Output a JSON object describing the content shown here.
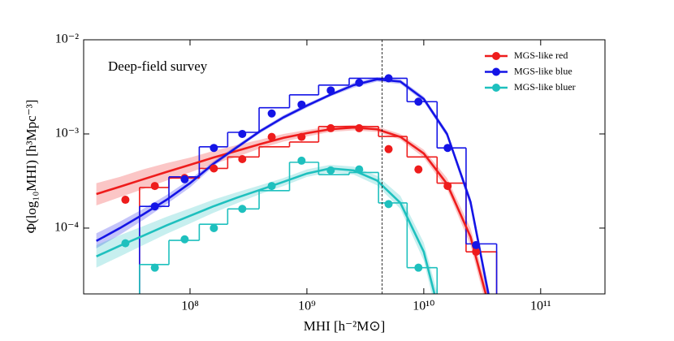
{
  "chart_data": {
    "type": "mass-function",
    "annotation": "Deep-field survey",
    "x_label": "MHI [h⁻²M⊙]",
    "y_label": "Φ(log₁₀MHI) [h³Mpc⁻³]",
    "log_x": true,
    "log_y": true,
    "xlim": [
      12300000,
      355000000000
    ],
    "ylim": [
      2e-05,
      0.01
    ],
    "xticks": [
      {
        "value": 100000000,
        "label": "10⁸"
      },
      {
        "value": 1000000000,
        "label": "10⁹"
      },
      {
        "value": 10000000000,
        "label": "10¹⁰"
      },
      {
        "value": 100000000000,
        "label": "10¹¹"
      }
    ],
    "yticks": [
      {
        "value": 0.0001,
        "label": "10⁻⁴"
      },
      {
        "value": 0.001,
        "label": "10⁻³"
      },
      {
        "value": 0.01,
        "label": "10⁻²"
      }
    ],
    "legend": "upper right",
    "reference_line": {
      "x": 4400000000,
      "style": "dashed"
    },
    "x": [
      28000000,
      50000000,
      90000000,
      160000000,
      280000000,
      500000000,
      900000000,
      1600000000,
      2800000000,
      5000000000,
      9000000000,
      16000000000,
      28000000000
    ],
    "bins": [
      37000000,
      66000000,
      120000000,
      210000000,
      390000000,
      710000000,
      1260000000,
      2300000000,
      4100000000,
      7200000000,
      13000000000,
      23000000000,
      42000000000
    ],
    "curve_x": [
      15800000,
      25100000,
      39800000,
      63100000,
      100000000,
      158000000,
      251000000,
      398000000,
      631000000,
      1000000000,
      1580000000,
      2510000000,
      3980000000,
      6310000000,
      10000000000,
      15800000000,
      25100000000,
      39800000000
    ],
    "series": [
      {
        "name": "MGS-like red",
        "color": "#ee1c1c",
        "values": [
          0.0002,
          0.00028,
          0.00034,
          0.00043,
          0.00054,
          0.00093,
          0.00093,
          0.00115,
          0.00115,
          0.00069,
          0.00042,
          0.00028,
          5.6e-05
        ],
        "steps": [
          0.00027,
          0.00034,
          0.00043,
          0.00057,
          0.00073,
          0.00082,
          0.0012,
          0.0012,
          0.00094,
          0.00057,
          0.0003,
          5.6e-05
        ],
        "curve": [
          0.00023,
          0.000275,
          0.00033,
          0.000395,
          0.00047,
          0.00056,
          0.00066,
          0.00078,
          0.00091,
          0.00102,
          0.00112,
          0.00117,
          0.00112,
          0.00093,
          0.00062,
          0.000295,
          8.1e-05,
          9.5e-06
        ],
        "band_upper": [
          0.0003,
          0.00035,
          0.00042,
          0.00049,
          0.00056,
          0.00066,
          0.00076,
          0.00087,
          0.001,
          0.0011,
          0.0012,
          0.00125,
          0.0012,
          0.001,
          0.00068,
          0.00034,
          0.0001,
          1.25e-05
        ],
        "band_lower": [
          0.000174,
          0.000213,
          0.00026,
          0.00032,
          0.00039,
          0.00048,
          0.00057,
          0.0007,
          0.00083,
          0.00094,
          0.00105,
          0.00109,
          0.00105,
          0.00087,
          0.00056,
          0.00026,
          6.6e-05,
          7.2e-06
        ]
      },
      {
        "name": "MGS-like blue",
        "color": "#1414e6",
        "values": [
          null,
          0.00017,
          0.00033,
          0.00071,
          0.001,
          0.00165,
          0.00205,
          0.0029,
          0.0035,
          0.0039,
          0.0022,
          0.00071,
          6.6e-05
        ],
        "steps": [
          0.00017,
          0.00035,
          0.00073,
          0.00104,
          0.0019,
          0.0026,
          0.0033,
          0.0039,
          0.0039,
          0.0022,
          0.00071,
          6.8e-05
        ],
        "curve": [
          7.3e-05,
          0.0001,
          0.00014,
          0.0002,
          0.0003,
          0.00048,
          0.00072,
          0.00107,
          0.0015,
          0.002,
          0.0026,
          0.0033,
          0.0038,
          0.0036,
          0.00235,
          0.001,
          0.00019,
          1e-05
        ],
        "band_upper": [
          8.8e-05,
          0.000117,
          0.00016,
          0.000225,
          0.00033,
          0.00051,
          0.00076,
          0.00112,
          0.00158,
          0.0021,
          0.0027,
          0.0035,
          0.004,
          0.0038,
          0.0025,
          0.00107,
          0.00021,
          1.2e-05
        ],
        "band_lower": [
          6.1e-05,
          8.5e-05,
          0.000122,
          0.00018,
          0.00027,
          0.00045,
          0.00069,
          0.00102,
          0.00143,
          0.0019,
          0.0025,
          0.0031,
          0.0036,
          0.0034,
          0.0022,
          0.00093,
          0.00017,
          8.3e-06
        ]
      },
      {
        "name": "MGS-like bluer",
        "color": "#1ec0be",
        "values": [
          6.9e-05,
          3.8e-05,
          7.6e-05,
          0.0001,
          0.00016,
          0.00028,
          0.00052,
          0.00041,
          0.00042,
          0.00018,
          3.8e-05,
          null,
          null
        ],
        "steps": [
          4.1e-05,
          7.4e-05,
          0.00011,
          0.00016,
          0.00025,
          0.0005,
          0.00037,
          0.00039,
          0.000185,
          3.8e-05,
          null,
          null
        ],
        "curve": [
          5e-05,
          6.5e-05,
          8.3e-05,
          0.000107,
          0.000135,
          0.00017,
          0.00021,
          0.000255,
          0.00031,
          0.00038,
          0.00043,
          0.00041,
          0.00032,
          0.000185,
          5.6e-05,
          6e-06,
          null,
          null
        ],
        "band_upper": [
          6.6e-05,
          8.4e-05,
          0.000105,
          0.000132,
          0.000162,
          0.0002,
          0.00024,
          0.000285,
          0.00034,
          0.00042,
          0.00047,
          0.00045,
          0.00036,
          0.00022,
          7e-05,
          8.5e-06,
          null,
          null
        ],
        "band_lower": [
          3.8e-05,
          5e-05,
          6.6e-05,
          8.7e-05,
          0.000112,
          0.000145,
          0.000183,
          0.00023,
          0.00028,
          0.00035,
          0.00039,
          0.00037,
          0.000285,
          0.00016,
          4.5e-05,
          4.2e-06,
          null,
          null
        ]
      }
    ]
  }
}
